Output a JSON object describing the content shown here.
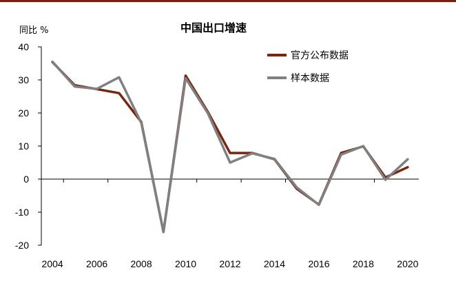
{
  "chart_data": {
    "type": "line",
    "title": "中国出口增速",
    "ylabel": "同比 %",
    "xlabel": "",
    "ylim": [
      -20,
      40
    ],
    "yticks": [
      -20,
      -10,
      0,
      10,
      20,
      30,
      40
    ],
    "xticks": [
      2004,
      2006,
      2008,
      2010,
      2012,
      2014,
      2016,
      2018,
      2020
    ],
    "x": [
      2004,
      2005,
      2006,
      2007,
      2008,
      2009,
      2010,
      2011,
      2012,
      2013,
      2014,
      2015,
      2016,
      2017,
      2018,
      2019,
      2020
    ],
    "series": [
      {
        "name": "官方公布数据",
        "color": "#7b2410",
        "values": [
          35.4,
          28.4,
          27.2,
          26.0,
          17.3,
          -16.0,
          31.3,
          20.3,
          7.9,
          7.9,
          6.0,
          -2.9,
          -7.7,
          7.9,
          9.9,
          0.5,
          3.6
        ]
      },
      {
        "name": "样本数据",
        "color": "#808080",
        "values": [
          35.5,
          28.0,
          27.3,
          30.8,
          17.0,
          -16.0,
          30.5,
          19.9,
          5.0,
          7.8,
          6.1,
          -2.5,
          -7.8,
          7.4,
          10.0,
          -0.2,
          6.0
        ]
      }
    ],
    "legend": "top-right",
    "grid": false
  }
}
